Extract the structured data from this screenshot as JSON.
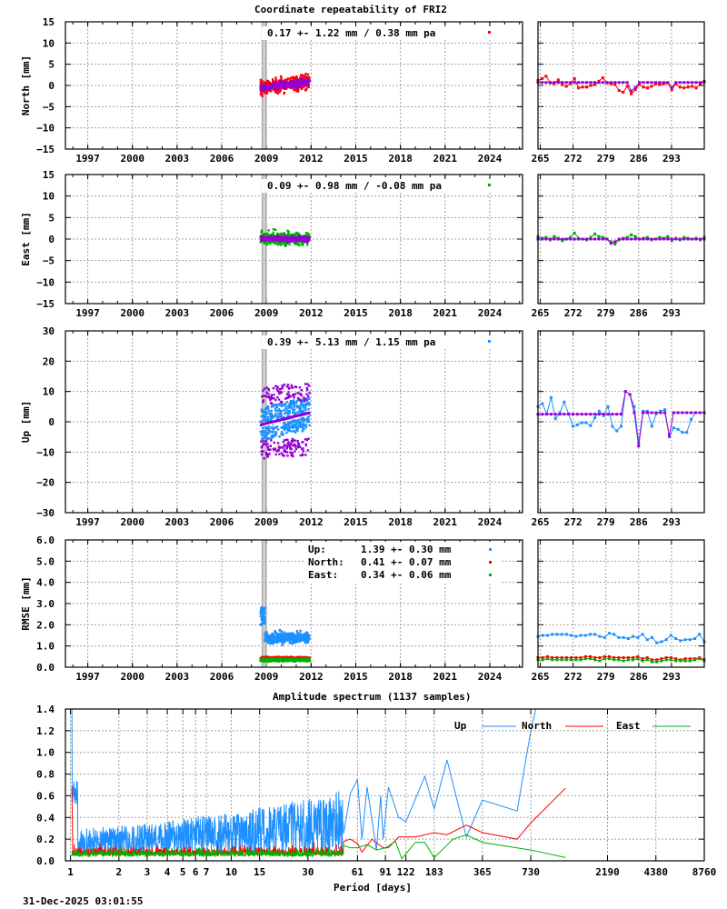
{
  "page": {
    "title": "Coordinate repeatability of FRI2",
    "timestamp": "31-Dec-2025 03:01:55"
  },
  "colors": {
    "up": "#1e90ff",
    "north": "#ff0000",
    "east": "#00b000",
    "model": "#9400d3",
    "break_line": "#b4b4b4",
    "grid": "#a0a0a0"
  },
  "chart_data": [
    {
      "id": "north",
      "type": "scatter",
      "title": "Coordinate repeatability of FRI2",
      "ylabel": "North [mm]",
      "xlabel": "",
      "ylim": [
        -15,
        15
      ],
      "yticks": [
        15,
        10,
        5,
        0,
        -5,
        -10,
        -15
      ],
      "xlim": [
        1995.5,
        2026.2
      ],
      "xticks": [
        1997,
        2000,
        2003,
        2006,
        2009,
        2012,
        2015,
        2018,
        2021,
        2024
      ],
      "annotation": "0.17 +- 1.22 mm /  0.38 mm pa",
      "series_color": "#ff0000",
      "data_range": [
        2008.6,
        2011.9
      ],
      "break_epochs": [
        2008.75,
        2008.95
      ],
      "scatter_spread": 1.8,
      "model_spread": 1.2,
      "trend": {
        "start": -0.5,
        "end": 0.8
      },
      "zoom": {
        "xticks": [
          265,
          272,
          279,
          286,
          293
        ],
        "xlim": [
          264.5,
          300
        ],
        "obs": [
          1.2,
          1.6,
          2.2,
          0.6,
          0.4,
          1.3,
          0.2,
          -0.2,
          0.4,
          1.6,
          -0.6,
          -0.4,
          -0.4,
          0.0,
          0.2,
          1.0,
          1.8,
          0.6,
          0.4,
          0.2,
          -1.2,
          -1.6,
          -0.2,
          -2.0,
          -1.0,
          0.2,
          -0.4,
          -0.6,
          -0.2,
          0.4,
          0.2,
          0.4,
          0.6,
          -1.0,
          0.4,
          -0.4,
          -0.6,
          -0.4,
          -0.2,
          -0.6,
          0.4,
          0.8
        ],
        "model": [
          0.7,
          0.7,
          0.7,
          0.7,
          0.7,
          0.7,
          0.7,
          0.7,
          0.7,
          0.7,
          0.7,
          0.7,
          0.7,
          0.7,
          0.7,
          0.7,
          0.7,
          0.7,
          0.7,
          0.7,
          0.7,
          0.7,
          0.7,
          -1.3,
          -0.5,
          0.7,
          0.7,
          0.7,
          0.7,
          0.7,
          0.7,
          0.7,
          0.7,
          -0.5,
          0.7,
          0.7,
          0.7,
          0.7,
          0.7,
          0.7,
          0.7,
          1.0
        ]
      }
    },
    {
      "id": "east",
      "type": "scatter",
      "ylabel": "East [mm]",
      "ylim": [
        -15,
        15
      ],
      "yticks": [
        15,
        10,
        5,
        0,
        -5,
        -10,
        -15
      ],
      "xlim": [
        1995.5,
        2026.2
      ],
      "xticks": [
        1997,
        2000,
        2003,
        2006,
        2009,
        2012,
        2015,
        2018,
        2021,
        2024
      ],
      "annotation": "0.09 +- 0.98 mm / -0.08 mm pa",
      "series_color": "#00b000",
      "data_range": [
        2008.6,
        2011.9
      ],
      "break_epochs": [
        2008.75,
        2008.95
      ],
      "scatter_spread": 1.6,
      "model_spread": 1.0,
      "trend": {
        "start": 0.2,
        "end": 0.0
      },
      "zoom": {
        "xticks": [
          265,
          272,
          279,
          286,
          293
        ],
        "xlim": [
          264.5,
          300
        ],
        "obs": [
          0.6,
          0.2,
          0.4,
          -0.2,
          0.6,
          0.2,
          -0.4,
          0.0,
          0.4,
          1.4,
          0.2,
          0.0,
          -0.2,
          0.4,
          1.2,
          0.6,
          0.4,
          0.0,
          -0.6,
          -1.2,
          -0.2,
          0.2,
          0.4,
          1.0,
          0.6,
          0.0,
          0.2,
          0.4,
          -0.2,
          0.0,
          0.4,
          0.2,
          0.6,
          -0.4,
          0.2,
          -0.2,
          0.4,
          0.2,
          0.0,
          0.2,
          -0.2,
          0.4
        ],
        "model": [
          0.0,
          0.0,
          0.0,
          0.0,
          0.0,
          0.0,
          0.0,
          0.0,
          0.0,
          0.0,
          0.0,
          0.0,
          0.0,
          0.0,
          0.0,
          0.0,
          0.0,
          0.0,
          -1.0,
          -0.6,
          0.0,
          0.0,
          0.0,
          0.0,
          0.0,
          0.0,
          0.0,
          0.0,
          0.0,
          0.0,
          0.0,
          0.0,
          0.0,
          0.0,
          0.0,
          0.0,
          0.0,
          0.0,
          0.0,
          0.0,
          0.0,
          0.0
        ]
      }
    },
    {
      "id": "up",
      "type": "scatter",
      "ylabel": "Up [mm]",
      "ylim": [
        -30,
        30
      ],
      "yticks": [
        30,
        20,
        10,
        0,
        -10,
        -20,
        -30
      ],
      "xlim": [
        1995.5,
        2026.2
      ],
      "xticks": [
        1997,
        2000,
        2003,
        2006,
        2009,
        2012,
        2015,
        2018,
        2021,
        2024
      ],
      "annotation": "0.39 +- 5.13 mm /  1.15 mm pa",
      "series_color": "#1e90ff",
      "data_range": [
        2008.6,
        2011.9
      ],
      "break_epochs": [
        2008.75,
        2008.95
      ],
      "scatter_spread": 5.0,
      "model_spread": 10.0,
      "trend": {
        "start": -1.0,
        "end": 3.0
      },
      "zoom": {
        "xticks": [
          265,
          272,
          279,
          286,
          293
        ],
        "xlim": [
          264.5,
          300
        ],
        "obs": [
          5,
          6,
          2.6,
          8,
          1,
          3,
          6.5,
          2.6,
          -1.5,
          -1,
          -0.3,
          -0.3,
          -1.3,
          1.3,
          3.5,
          2,
          5,
          -1.5,
          -3,
          -1.5,
          10,
          9,
          5,
          -7,
          3.5,
          3.5,
          -1.5,
          2.6,
          3.5,
          4,
          -5,
          -2,
          -2.5,
          -3.5,
          -3.5,
          0.8,
          3,
          3,
          3
        ],
        "model": [
          2.5,
          2.5,
          2.5,
          2.5,
          2.5,
          2.5,
          2.5,
          2.5,
          2.5,
          2.5,
          2.5,
          2.5,
          2.5,
          2.5,
          2.5,
          2.5,
          2.5,
          2.5,
          2.5,
          2.5,
          10,
          9,
          3,
          -8,
          3,
          3,
          3,
          3,
          3,
          3,
          -4.5,
          3,
          3,
          3,
          3,
          3,
          3,
          3,
          3
        ]
      }
    },
    {
      "id": "rmse",
      "type": "scatter",
      "ylabel": "RMSE [mm]",
      "ylim": [
        0,
        6
      ],
      "yticks": [
        "6.0",
        "5.0",
        "4.0",
        "3.0",
        "2.0",
        "1.0",
        "0.0"
      ],
      "xlim": [
        1995.5,
        2026.2
      ],
      "xticks": [
        1997,
        2000,
        2003,
        2006,
        2009,
        2012,
        2015,
        2018,
        2021,
        2024
      ],
      "legend": [
        {
          "label": "Up:",
          "value": "1.39 +- 0.30 mm",
          "color": "#1e90ff"
        },
        {
          "label": "North:",
          "value": "0.41 +- 0.07 mm",
          "color": "#ff0000"
        },
        {
          "label": "East:",
          "value": "0.34 +- 0.06 mm",
          "color": "#00b000"
        }
      ],
      "data_range": [
        2008.6,
        2011.9
      ],
      "break_epochs": [
        2008.75,
        2008.95
      ],
      "series": [
        {
          "name": "Up",
          "mean": 1.39,
          "std": 0.3,
          "color": "#1e90ff"
        },
        {
          "name": "North",
          "mean": 0.41,
          "std": 0.07,
          "color": "#ff0000"
        },
        {
          "name": "East",
          "mean": 0.34,
          "std": 0.06,
          "color": "#00b000"
        }
      ],
      "zoom": {
        "xticks": [
          265,
          272,
          279,
          286,
          293
        ],
        "xlim": [
          264.5,
          300
        ],
        "up": [
          1.45,
          1.5,
          1.5,
          1.55,
          1.55,
          1.55,
          1.55,
          1.5,
          1.45,
          1.5,
          1.5,
          1.55,
          1.55,
          1.45,
          1.4,
          1.6,
          1.55,
          1.4,
          1.4,
          1.35,
          1.45,
          1.4,
          1.55,
          1.3,
          1.4,
          1.15,
          1.2,
          1.3,
          1.5,
          1.35,
          1.25,
          1.3,
          1.3,
          1.35,
          1.55,
          1.2
        ],
        "north": [
          0.45,
          0.45,
          0.5,
          0.45,
          0.45,
          0.45,
          0.45,
          0.45,
          0.45,
          0.45,
          0.5,
          0.5,
          0.45,
          0.45,
          0.5,
          0.5,
          0.45,
          0.45,
          0.45,
          0.45,
          0.45,
          0.5,
          0.4,
          0.45,
          0.35,
          0.35,
          0.4,
          0.45,
          0.45,
          0.4,
          0.35,
          0.4,
          0.4,
          0.4,
          0.45,
          0.35
        ],
        "east": [
          0.35,
          0.35,
          0.4,
          0.35,
          0.35,
          0.35,
          0.35,
          0.35,
          0.35,
          0.35,
          0.4,
          0.4,
          0.35,
          0.3,
          0.4,
          0.4,
          0.35,
          0.35,
          0.3,
          0.35,
          0.35,
          0.4,
          0.3,
          0.35,
          0.25,
          0.25,
          0.3,
          0.35,
          0.35,
          0.3,
          0.3,
          0.3,
          0.3,
          0.35,
          0.4,
          0.3
        ]
      }
    },
    {
      "id": "spectrum",
      "type": "line",
      "title": "Amplitude spectrum (1137 samples)",
      "xlabel": "Period [days]",
      "ylabel": "",
      "ylim": [
        0,
        1.4
      ],
      "yticks": [
        "1.4",
        "1.2",
        "1.0",
        "0.8",
        "0.6",
        "0.4",
        "0.2",
        "0.0"
      ],
      "xscale": "log",
      "xlim": [
        0.93,
        8760
      ],
      "xticks": [
        1,
        2,
        3,
        4,
        5,
        6,
        7,
        10,
        15,
        30,
        61,
        91,
        122,
        183,
        365,
        730,
        2190,
        4380,
        8760
      ],
      "legend": [
        {
          "label": "Up",
          "color": "#1e90ff"
        },
        {
          "label": "North",
          "color": "#ff0000"
        },
        {
          "label": "East",
          "color": "#00b000"
        }
      ],
      "series": [
        {
          "name": "Up",
          "color": "#1e90ff",
          "low_period_envelope": {
            "period_max": 50,
            "base": 0.25,
            "noise": 0.35
          },
          "points": [
            [
              50,
              0.25
            ],
            [
              55,
              0.62
            ],
            [
              61,
              0.75
            ],
            [
              65,
              0.2
            ],
            [
              70,
              0.68
            ],
            [
              80,
              0.1
            ],
            [
              85,
              0.6
            ],
            [
              88,
              0.2
            ],
            [
              95,
              0.68
            ],
            [
              110,
              0.4
            ],
            [
              122,
              0.36
            ],
            [
              160,
              0.78
            ],
            [
              183,
              0.48
            ],
            [
              220,
              0.93
            ],
            [
              290,
              0.22
            ],
            [
              365,
              0.56
            ],
            [
              600,
              0.46
            ],
            [
              730,
              1.2
            ],
            [
              800,
              1.45
            ]
          ]
        },
        {
          "name": "North",
          "color": "#ff0000",
          "low_period_envelope": {
            "period_max": 50,
            "base": 0.05,
            "noise": 0.08
          },
          "points": [
            [
              50,
              0.18
            ],
            [
              55,
              0.2
            ],
            [
              61,
              0.16
            ],
            [
              65,
              0.08
            ],
            [
              75,
              0.2
            ],
            [
              88,
              0.12
            ],
            [
              95,
              0.12
            ],
            [
              110,
              0.22
            ],
            [
              140,
              0.22
            ],
            [
              183,
              0.26
            ],
            [
              220,
              0.24
            ],
            [
              290,
              0.33
            ],
            [
              365,
              0.26
            ],
            [
              600,
              0.2
            ],
            [
              730,
              0.35
            ],
            [
              1200,
              0.67
            ]
          ]
        },
        {
          "name": "East",
          "color": "#00b000",
          "low_period_envelope": {
            "period_max": 50,
            "base": 0.04,
            "noise": 0.07
          },
          "points": [
            [
              50,
              0.14
            ],
            [
              55,
              0.12
            ],
            [
              61,
              0.12
            ],
            [
              70,
              0.15
            ],
            [
              80,
              0.1
            ],
            [
              91,
              0.12
            ],
            [
              105,
              0.18
            ],
            [
              115,
              0.02
            ],
            [
              140,
              0.17
            ],
            [
              160,
              0.17
            ],
            [
              183,
              0.03
            ],
            [
              240,
              0.2
            ],
            [
              290,
              0.24
            ],
            [
              365,
              0.17
            ],
            [
              730,
              0.1
            ],
            [
              1200,
              0.03
            ]
          ]
        }
      ]
    }
  ]
}
